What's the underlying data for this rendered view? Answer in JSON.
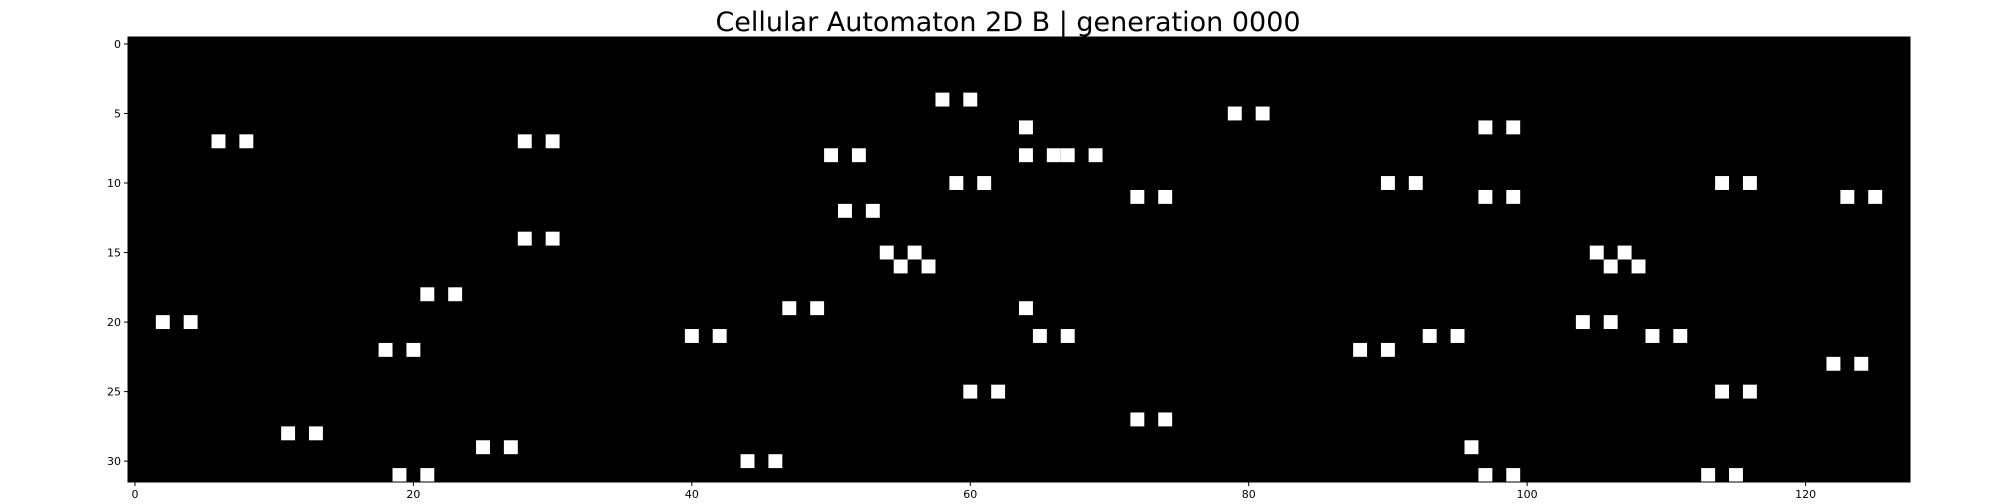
{
  "chart_data": {
    "type": "heatmap",
    "title": "Cellular Automaton 2D B | generation 0000",
    "xlabel": "",
    "ylabel": "",
    "grid_width": 128,
    "grid_height": 32,
    "xlim": [
      -0.5,
      127.5
    ],
    "ylim": [
      31.5,
      -0.5
    ],
    "x_ticks": [
      0,
      20,
      40,
      60,
      80,
      100,
      120
    ],
    "y_ticks": [
      0,
      5,
      10,
      15,
      20,
      25,
      30
    ],
    "grid": false,
    "background_color": "#000000",
    "live_color": "#ffffff",
    "live_cells": [
      [
        58,
        4
      ],
      [
        60,
        4
      ],
      [
        79,
        5
      ],
      [
        81,
        5
      ],
      [
        64,
        6
      ],
      [
        97,
        6
      ],
      [
        99,
        6
      ],
      [
        6,
        7
      ],
      [
        8,
        7
      ],
      [
        28,
        7
      ],
      [
        30,
        7
      ],
      [
        50,
        8
      ],
      [
        52,
        8
      ],
      [
        64,
        8
      ],
      [
        66,
        8
      ],
      [
        67,
        8
      ],
      [
        69,
        8
      ],
      [
        59,
        10
      ],
      [
        61,
        10
      ],
      [
        90,
        10
      ],
      [
        92,
        10
      ],
      [
        114,
        10
      ],
      [
        116,
        10
      ],
      [
        72,
        11
      ],
      [
        74,
        11
      ],
      [
        97,
        11
      ],
      [
        99,
        11
      ],
      [
        123,
        11
      ],
      [
        125,
        11
      ],
      [
        51,
        12
      ],
      [
        53,
        12
      ],
      [
        28,
        14
      ],
      [
        30,
        14
      ],
      [
        54,
        15
      ],
      [
        56,
        15
      ],
      [
        105,
        15
      ],
      [
        107,
        15
      ],
      [
        55,
        16
      ],
      [
        57,
        16
      ],
      [
        106,
        16
      ],
      [
        108,
        16
      ],
      [
        21,
        18
      ],
      [
        23,
        18
      ],
      [
        47,
        19
      ],
      [
        49,
        19
      ],
      [
        64,
        19
      ],
      [
        2,
        20
      ],
      [
        4,
        20
      ],
      [
        104,
        20
      ],
      [
        106,
        20
      ],
      [
        40,
        21
      ],
      [
        42,
        21
      ],
      [
        65,
        21
      ],
      [
        67,
        21
      ],
      [
        93,
        21
      ],
      [
        95,
        21
      ],
      [
        109,
        21
      ],
      [
        111,
        21
      ],
      [
        18,
        22
      ],
      [
        20,
        22
      ],
      [
        88,
        22
      ],
      [
        90,
        22
      ],
      [
        122,
        23
      ],
      [
        124,
        23
      ],
      [
        60,
        25
      ],
      [
        62,
        25
      ],
      [
        114,
        25
      ],
      [
        116,
        25
      ],
      [
        72,
        27
      ],
      [
        74,
        27
      ],
      [
        11,
        28
      ],
      [
        13,
        28
      ],
      [
        25,
        29
      ],
      [
        27,
        29
      ],
      [
        96,
        29
      ],
      [
        44,
        30
      ],
      [
        46,
        30
      ],
      [
        19,
        31
      ],
      [
        21,
        31
      ],
      [
        97,
        31
      ],
      [
        99,
        31
      ],
      [
        113,
        31
      ],
      [
        115,
        31
      ]
    ]
  }
}
